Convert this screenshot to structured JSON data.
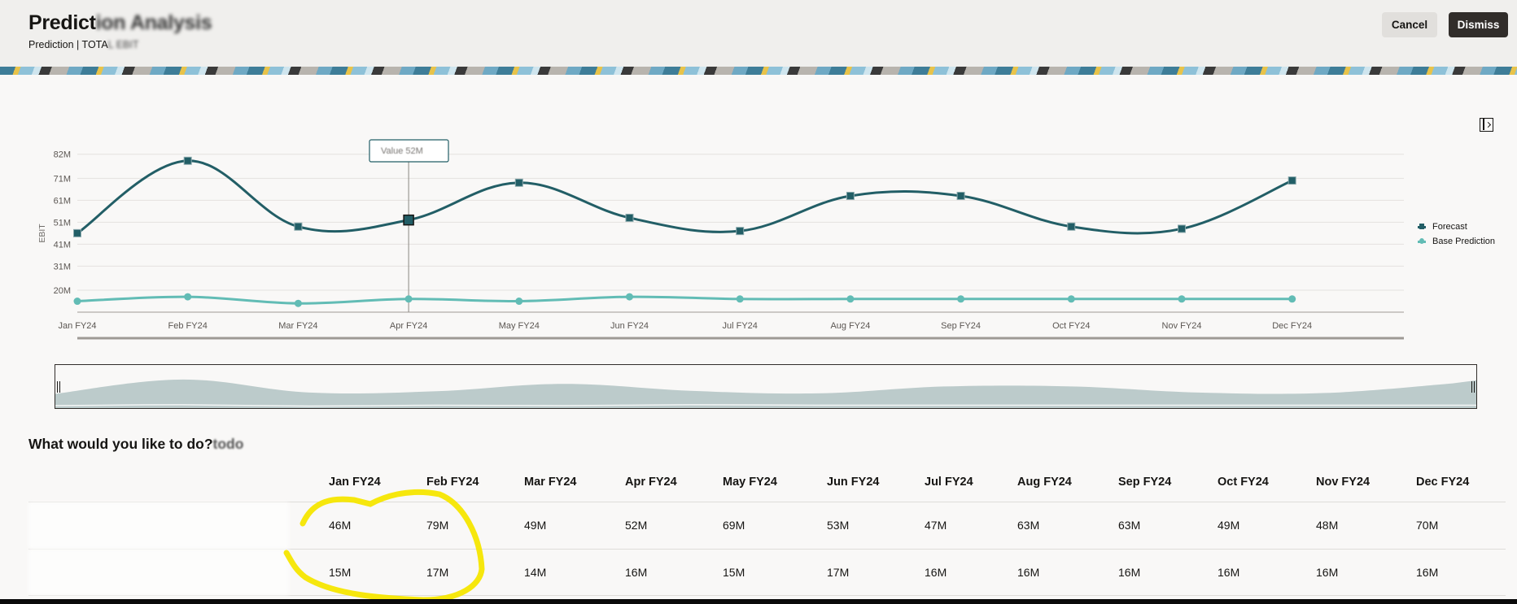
{
  "header": {
    "title_visible": "Predict",
    "title_obscured": "ion Analysis",
    "subtitle_visible": "Prediction | TOTA",
    "subtitle_obscured": "L EBIT",
    "cancel_label": "Cancel",
    "dismiss_label": "Dismiss"
  },
  "chart": {
    "tooltip": "Value 52M",
    "expand_icon": "panel-expand-icon"
  },
  "chart_data": {
    "type": "line",
    "title": "",
    "xlabel": "",
    "ylabel": "EBIT",
    "categories": [
      "Jan FY24",
      "Feb FY24",
      "Mar FY24",
      "Apr FY24",
      "May FY24",
      "Jun FY24",
      "Jul FY24",
      "Aug FY24",
      "Sep FY24",
      "Oct FY24",
      "Nov FY24",
      "Dec FY24"
    ],
    "y_ticks": [
      "20M",
      "31M",
      "41M",
      "51M",
      "61M",
      "71M",
      "82M"
    ],
    "ylim": [
      10,
      84
    ],
    "grid": true,
    "legend_position": "right",
    "series": [
      {
        "name": "Forecast",
        "color": "#225e66",
        "marker": "square",
        "values": [
          46,
          79,
          49,
          52,
          69,
          53,
          47,
          63,
          63,
          49,
          48,
          70
        ]
      },
      {
        "name": "Base Prediction",
        "color": "#62bcb5",
        "marker": "circle",
        "values": [
          15,
          17,
          14,
          16,
          15,
          17,
          16,
          16,
          16,
          16,
          16,
          16
        ]
      }
    ],
    "highlighted_point": {
      "category": "Apr FY24",
      "series": "Forecast",
      "value": 52
    }
  },
  "legend": {
    "items": [
      {
        "label": "Forecast"
      },
      {
        "label": "Base Prediction"
      }
    ]
  },
  "section": {
    "title_visible": "What would you like to do?",
    "title_obscured": " todo"
  },
  "table": {
    "columns": [
      "Jan FY24",
      "Feb FY24",
      "Mar FY24",
      "Apr FY24",
      "May FY24",
      "Jun FY24",
      "Jul FY24",
      "Aug FY24",
      "Sep FY24",
      "Oct FY24",
      "Nov FY24",
      "Dec FY24"
    ],
    "rows": [
      {
        "values": [
          "46M",
          "79M",
          "49M",
          "52M",
          "69M",
          "53M",
          "47M",
          "63M",
          "63M",
          "49M",
          "48M",
          "70M"
        ]
      },
      {
        "values": [
          "15M",
          "17M",
          "14M",
          "16M",
          "15M",
          "17M",
          "16M",
          "16M",
          "16M",
          "16M",
          "16M",
          "16M"
        ]
      }
    ]
  }
}
